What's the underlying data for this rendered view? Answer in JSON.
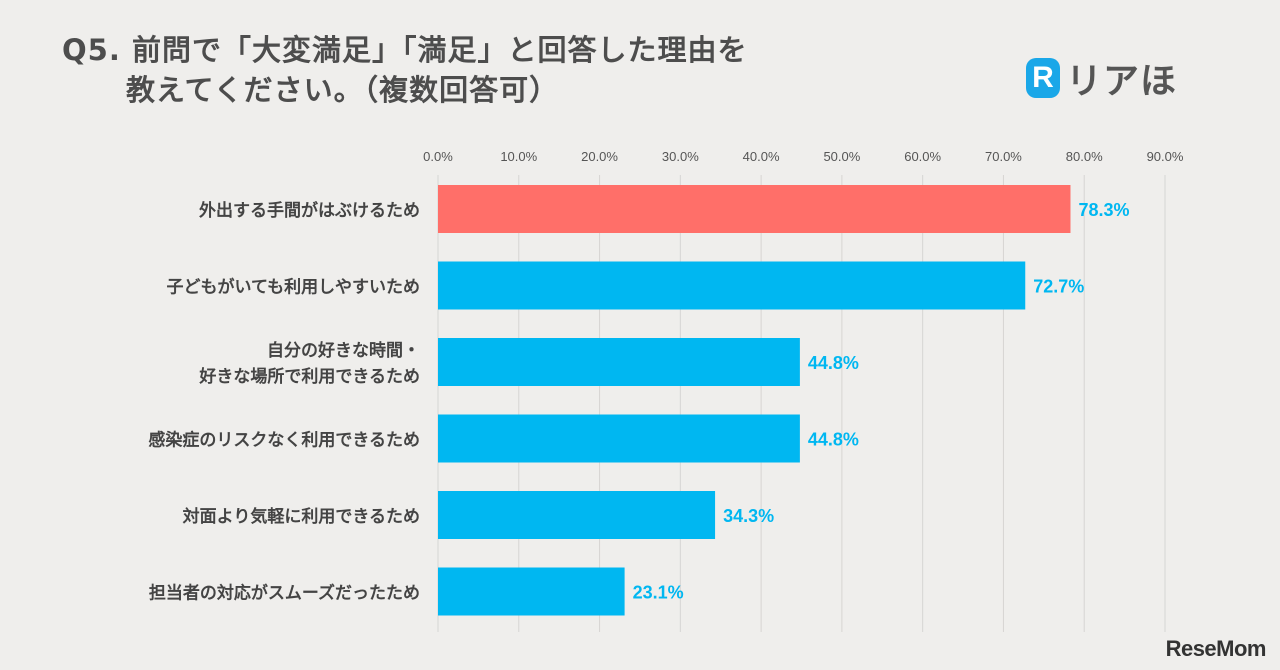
{
  "title": {
    "line1": "Q5. 前問で「大変満足」「満足」と回答した理由を",
    "line2": "教えてください。（複数回答可）"
  },
  "logo": {
    "mark": "R",
    "text": "リアほ"
  },
  "footer": {
    "brand": "ReseMom"
  },
  "colors": {
    "highlight": "#ff6f69",
    "bar": "#00b7f1",
    "value_text": "#00b7f1",
    "axis_text": "#555555",
    "label_text": "#444444",
    "grid": "#d6d5d3"
  },
  "chart_data": {
    "type": "bar",
    "orientation": "horizontal",
    "xlim": [
      0,
      90
    ],
    "ticks": [
      "0.0%",
      "10.0%",
      "20.0%",
      "30.0%",
      "40.0%",
      "50.0%",
      "60.0%",
      "70.0%",
      "80.0%",
      "90.0%"
    ],
    "tick_values": [
      0,
      10,
      20,
      30,
      40,
      50,
      60,
      70,
      80,
      90
    ],
    "categories": [
      [
        "外出する手間がはぶけるため"
      ],
      [
        "子どもがいても利用しやすいため"
      ],
      [
        "自分の好きな時間・",
        "好きな場所で利用できるため"
      ],
      [
        "感染症のリスクなく利用できるため"
      ],
      [
        "対面より気軽に利用できるため"
      ],
      [
        "担当者の対応がスムーズだったため"
      ]
    ],
    "values": [
      78.3,
      72.7,
      44.8,
      44.8,
      34.3,
      23.1
    ],
    "value_labels": [
      "78.3%",
      "72.7%",
      "44.8%",
      "44.8%",
      "34.3%",
      "23.1%"
    ],
    "highlight_index": 0
  }
}
